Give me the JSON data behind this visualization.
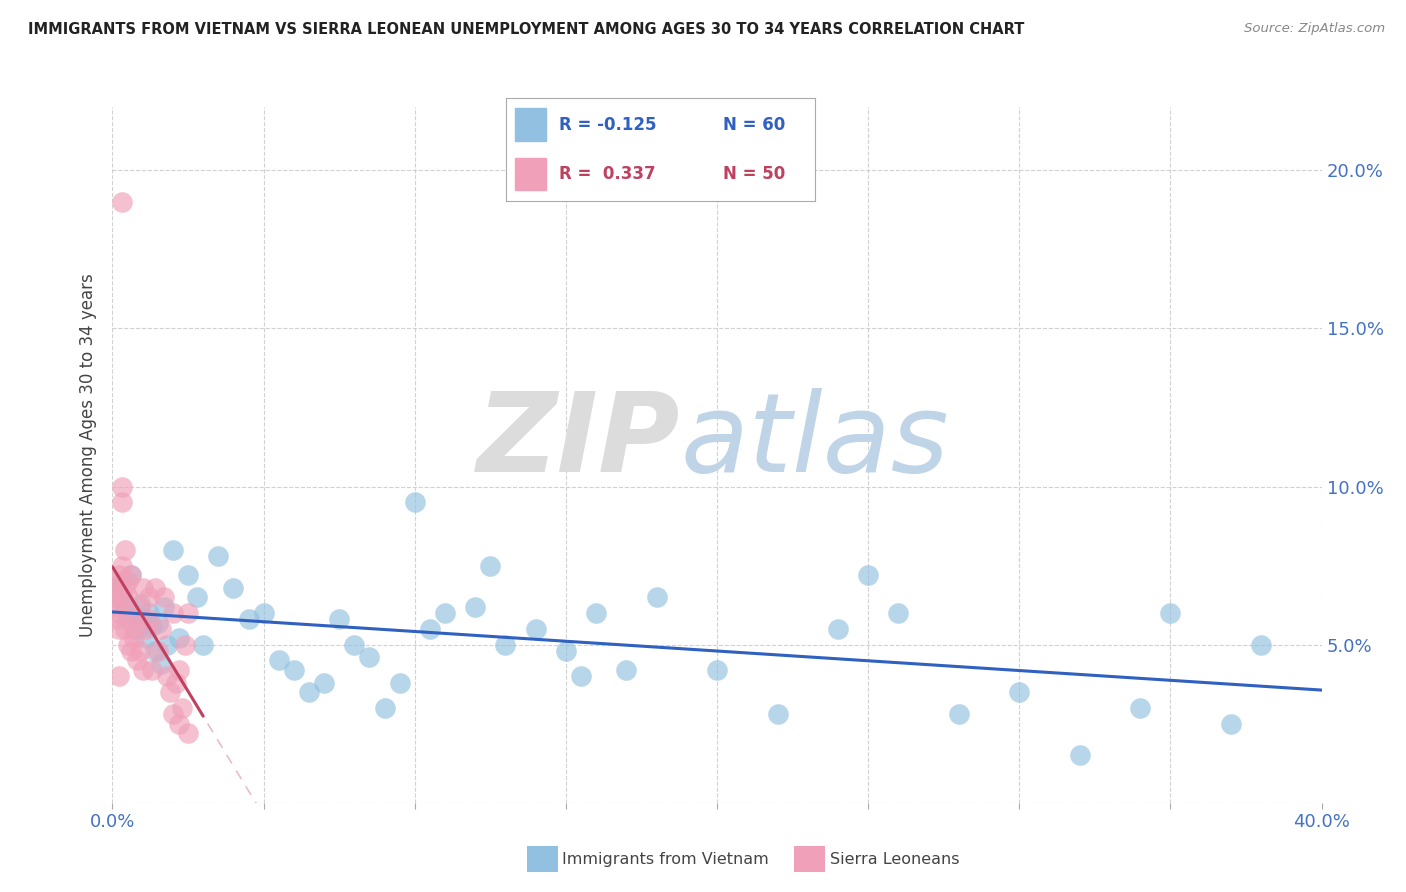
{
  "title": "IMMIGRANTS FROM VIETNAM VS SIERRA LEONEAN UNEMPLOYMENT AMONG AGES 30 TO 34 YEARS CORRELATION CHART",
  "source": "Source: ZipAtlas.com",
  "ylabel": "Unemployment Among Ages 30 to 34 years",
  "xlim": [
    0.0,
    0.4
  ],
  "ylim": [
    0.0,
    0.22
  ],
  "xticks": [
    0.0,
    0.05,
    0.1,
    0.15,
    0.2,
    0.25,
    0.3,
    0.35,
    0.4
  ],
  "yticks": [
    0.0,
    0.05,
    0.1,
    0.15,
    0.2
  ],
  "yticklabels": [
    "",
    "5.0%",
    "10.0%",
    "15.0%",
    "20.0%"
  ],
  "blue_color": "#92C0E0",
  "pink_color": "#F0A0B8",
  "blue_line_color": "#3060C0",
  "pink_line_color": "#C04060",
  "blue_scatter_x": [
    0.001,
    0.002,
    0.003,
    0.004,
    0.005,
    0.006,
    0.007,
    0.008,
    0.009,
    0.01,
    0.011,
    0.012,
    0.013,
    0.014,
    0.015,
    0.016,
    0.017,
    0.018,
    0.02,
    0.022,
    0.025,
    0.028,
    0.03,
    0.035,
    0.04,
    0.045,
    0.05,
    0.055,
    0.06,
    0.065,
    0.07,
    0.075,
    0.08,
    0.085,
    0.09,
    0.095,
    0.1,
    0.105,
    0.11,
    0.12,
    0.125,
    0.13,
    0.14,
    0.15,
    0.155,
    0.16,
    0.17,
    0.18,
    0.2,
    0.22,
    0.24,
    0.25,
    0.26,
    0.28,
    0.3,
    0.32,
    0.34,
    0.35,
    0.37,
    0.38
  ],
  "blue_scatter_y": [
    0.068,
    0.065,
    0.07,
    0.062,
    0.058,
    0.072,
    0.06,
    0.055,
    0.063,
    0.058,
    0.052,
    0.06,
    0.056,
    0.048,
    0.057,
    0.044,
    0.062,
    0.05,
    0.08,
    0.052,
    0.072,
    0.065,
    0.05,
    0.078,
    0.068,
    0.058,
    0.06,
    0.045,
    0.042,
    0.035,
    0.038,
    0.058,
    0.05,
    0.046,
    0.03,
    0.038,
    0.095,
    0.055,
    0.06,
    0.062,
    0.075,
    0.05,
    0.055,
    0.048,
    0.04,
    0.06,
    0.042,
    0.065,
    0.042,
    0.028,
    0.055,
    0.072,
    0.06,
    0.028,
    0.035,
    0.015,
    0.03,
    0.06,
    0.025,
    0.05
  ],
  "pink_scatter_x": [
    0.001,
    0.001,
    0.001,
    0.001,
    0.001,
    0.002,
    0.002,
    0.002,
    0.002,
    0.003,
    0.003,
    0.003,
    0.003,
    0.004,
    0.004,
    0.004,
    0.005,
    0.005,
    0.005,
    0.006,
    0.006,
    0.006,
    0.007,
    0.007,
    0.008,
    0.008,
    0.009,
    0.009,
    0.01,
    0.01,
    0.011,
    0.012,
    0.012,
    0.013,
    0.014,
    0.015,
    0.016,
    0.017,
    0.018,
    0.019,
    0.02,
    0.02,
    0.021,
    0.022,
    0.022,
    0.023,
    0.024,
    0.025,
    0.003,
    0.025
  ],
  "pink_scatter_y": [
    0.068,
    0.07,
    0.065,
    0.062,
    0.058,
    0.072,
    0.06,
    0.055,
    0.04,
    0.1,
    0.095,
    0.075,
    0.065,
    0.08,
    0.068,
    0.055,
    0.07,
    0.065,
    0.05,
    0.06,
    0.072,
    0.048,
    0.055,
    0.052,
    0.058,
    0.045,
    0.062,
    0.048,
    0.068,
    0.042,
    0.055,
    0.058,
    0.065,
    0.042,
    0.068,
    0.048,
    0.055,
    0.065,
    0.04,
    0.035,
    0.06,
    0.028,
    0.038,
    0.042,
    0.025,
    0.03,
    0.05,
    0.06,
    0.19,
    0.022
  ]
}
